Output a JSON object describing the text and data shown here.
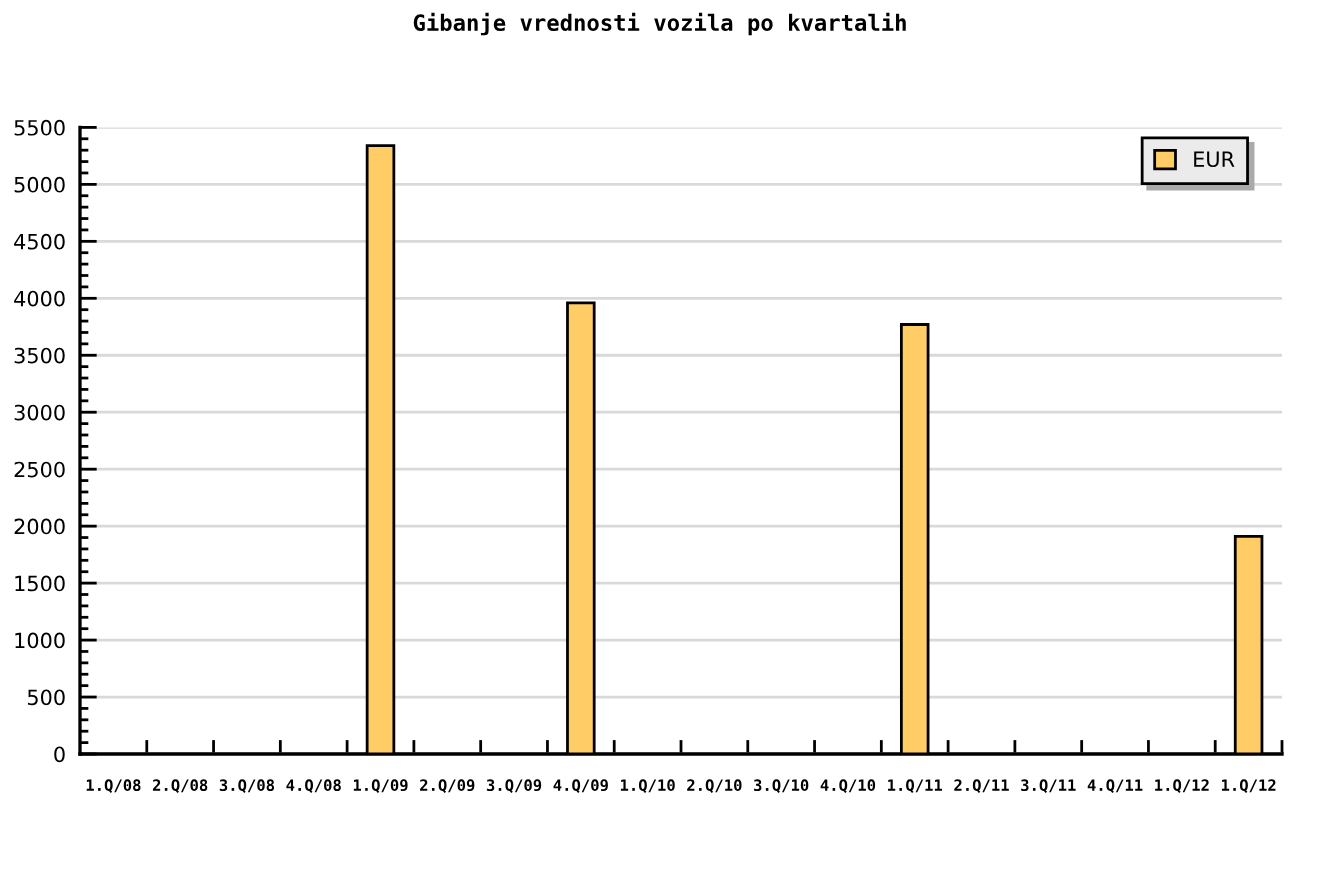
{
  "chart_data": {
    "type": "bar",
    "title": "Gibanje vrednosti vozila po kvartalih",
    "categories": [
      "1.Q/08",
      "2.Q/08",
      "3.Q/08",
      "4.Q/08",
      "1.Q/09",
      "2.Q/09",
      "3.Q/09",
      "4.Q/09",
      "1.Q/10",
      "2.Q/10",
      "3.Q/10",
      "4.Q/10",
      "1.Q/11",
      "2.Q/11",
      "3.Q/11",
      "4.Q/11",
      "1.Q/12",
      "1.Q/12"
    ],
    "series": [
      {
        "name": "EUR",
        "color": "#ffcc66",
        "values": [
          null,
          null,
          null,
          null,
          5340,
          null,
          null,
          3960,
          null,
          null,
          null,
          null,
          3770,
          null,
          null,
          null,
          null,
          1910
        ]
      }
    ],
    "ylim": [
      0,
      5500
    ],
    "yticks": [
      0,
      {
        "value": 100,
        "label": null
      },
      {
        "value": 200,
        "label": null
      },
      {
        "value": 300,
        "label": null
      },
      {
        "value": 400,
        "label": null
      },
      500,
      {
        "value": 600,
        "label": null
      },
      {
        "value": 700,
        "label": null
      },
      {
        "value": 800,
        "label": null
      },
      {
        "value": 900,
        "label": null
      },
      1000,
      {
        "value": 1100,
        "label": null
      },
      {
        "value": 1200,
        "label": null
      },
      {
        "value": 1300,
        "label": null
      },
      {
        "value": 1400,
        "label": null
      },
      1500,
      {
        "value": 1600,
        "label": null
      },
      {
        "value": 1700,
        "label": null
      },
      {
        "value": 1800,
        "label": null
      },
      {
        "value": 1900,
        "label": null
      },
      2000,
      {
        "value": 2100,
        "label": null
      },
      {
        "value": 2200,
        "label": null
      },
      {
        "value": 2300,
        "label": null
      },
      {
        "value": 2400,
        "label": null
      },
      2500,
      {
        "value": 2600,
        "label": null
      },
      {
        "value": 2700,
        "label": null
      },
      {
        "value": 2800,
        "label": null
      },
      {
        "value": 2900,
        "label": null
      },
      3000,
      {
        "value": 3100,
        "label": null
      },
      {
        "value": 3200,
        "label": null
      },
      {
        "value": 3300,
        "label": null
      },
      {
        "value": 3400,
        "label": null
      },
      3500,
      {
        "value": 3600,
        "label": null
      },
      {
        "value": 3700,
        "label": null
      },
      {
        "value": 3800,
        "label": null
      },
      {
        "value": 3900,
        "label": null
      },
      4000,
      {
        "value": 4100,
        "label": null
      },
      {
        "value": 4200,
        "label": null
      },
      {
        "value": 4300,
        "label": null
      },
      {
        "value": 4400,
        "label": null
      },
      4500,
      {
        "value": 4600,
        "label": null
      },
      {
        "value": 4700,
        "label": null
      },
      {
        "value": 4800,
        "label": null
      },
      {
        "value": 4900,
        "label": null
      },
      5000,
      {
        "value": 5100,
        "label": null
      },
      {
        "value": 5200,
        "label": null
      },
      {
        "value": 5300,
        "label": null
      },
      {
        "value": 5400,
        "label": null
      },
      5500
    ],
    "grid": "y",
    "legend": "top right"
  }
}
